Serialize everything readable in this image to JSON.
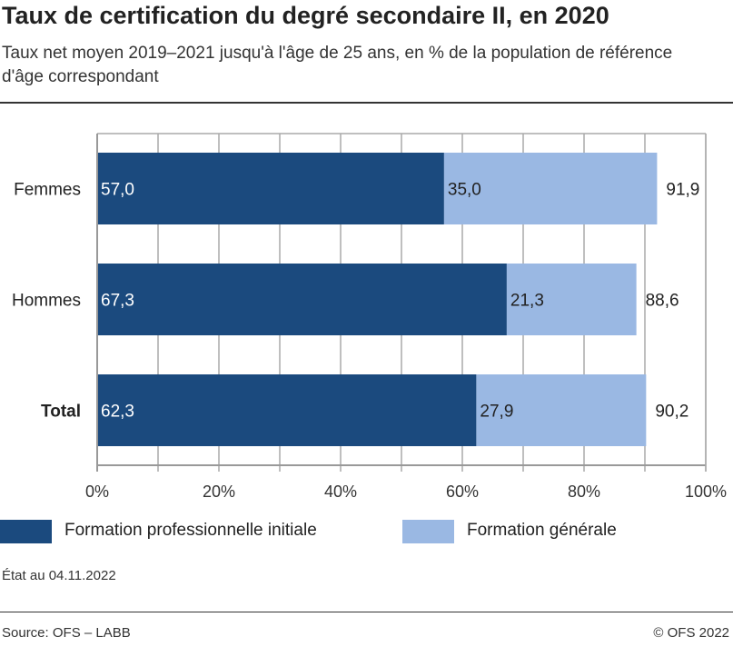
{
  "title": "Taux de certification du degré secondaire II, en 2020",
  "subtitle": "Taux net moyen 2019–2021 jusqu'à l'âge de 25 ans, en % de la population de référence d'âge correspondant",
  "note": "État au 04.11.2022",
  "source": "Source: OFS – LABB",
  "copyright": "© OFS 2022",
  "chart_data": {
    "type": "bar",
    "orientation": "horizontal",
    "stacked": true,
    "categories": [
      "Femmes",
      "Hommes",
      "Total"
    ],
    "category_bold": [
      false,
      false,
      true
    ],
    "series": [
      {
        "name": "Formation professionnelle initiale",
        "color": "#1b4a7e",
        "values": [
          57.0,
          67.3,
          62.3
        ],
        "labels": [
          "57,0",
          "67,3",
          "62,3"
        ]
      },
      {
        "name": "Formation générale",
        "color": "#9ab8e3",
        "values": [
          35.0,
          21.3,
          27.9
        ],
        "labels": [
          "35,0",
          "21,3",
          "27,9"
        ]
      }
    ],
    "totals": [
      91.9,
      88.6,
      90.2
    ],
    "total_labels": [
      "91,9",
      "88,6",
      "90,2"
    ],
    "xlim": [
      0,
      100
    ],
    "xticks": [
      0,
      20,
      40,
      60,
      80,
      100
    ],
    "xtick_labels": [
      "0%",
      "20%",
      "40%",
      "60%",
      "80%",
      "100%"
    ],
    "grid": true,
    "legend": "bottom"
  }
}
